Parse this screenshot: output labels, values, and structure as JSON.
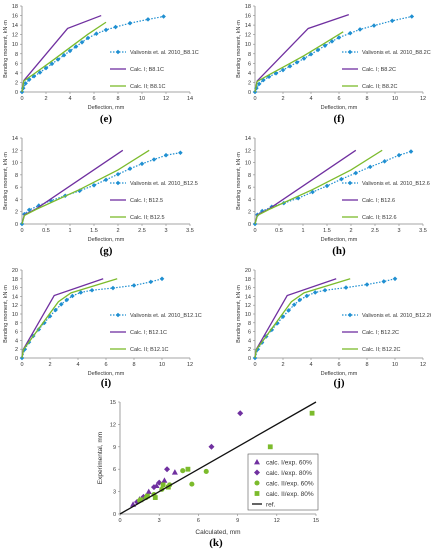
{
  "panel_labels": [
    "(e)",
    "(f)",
    "(g)",
    "(h)",
    "(i)",
    "(j)",
    "(k)"
  ],
  "colors": {
    "exp": "#1f8fd1",
    "calc1": "#7030a0",
    "calc2": "#7cbb2c",
    "ref": "#111111"
  },
  "chart_data": [
    {
      "id": "e",
      "type": "line",
      "xlabel": "Deflection, mm",
      "ylabel": "Bending moment, kN·m",
      "xlim": [
        0,
        14
      ],
      "ylim": [
        0,
        18
      ],
      "xticks": [
        0,
        2,
        4,
        6,
        8,
        10,
        12,
        14
      ],
      "yticks": [
        0,
        2,
        4,
        6,
        8,
        10,
        12,
        14,
        16,
        18
      ],
      "legend_position": "right",
      "series": [
        {
          "name": "Valivonis et. al. 2010_B8.1C",
          "style": "exp",
          "x": [
            0,
            0.1,
            0.3,
            0.6,
            1.0,
            1.5,
            2.0,
            2.5,
            3.0,
            3.5,
            4.0,
            4.5,
            5.0,
            5.5,
            6.2,
            7.0,
            7.8,
            9.0,
            10.5,
            11.8
          ],
          "y": [
            0,
            0.8,
            1.8,
            2.6,
            3.3,
            4.1,
            5.0,
            5.9,
            6.8,
            7.7,
            8.6,
            9.5,
            10.4,
            11.3,
            12.2,
            13.0,
            13.6,
            14.4,
            15.2,
            15.8
          ]
        },
        {
          "name": "Calc. I; B8.1C",
          "style": "calc1",
          "x": [
            0,
            0.15,
            3.8,
            6.6
          ],
          "y": [
            0,
            2.4,
            13.3,
            16.0
          ]
        },
        {
          "name": "Calc. II; B8.1C",
          "style": "calc2",
          "x": [
            0,
            0.15,
            1.0,
            2.5,
            4.0,
            5.5,
            7.0
          ],
          "y": [
            0,
            2.3,
            3.8,
            6.5,
            9.3,
            12.1,
            14.6
          ]
        }
      ]
    },
    {
      "id": "f",
      "type": "line",
      "xlabel": "Deflection, mm",
      "ylabel": "Bending moment, kN·m",
      "xlim": [
        0,
        12
      ],
      "ylim": [
        0,
        18
      ],
      "xticks": [
        0,
        2,
        4,
        6,
        8,
        10,
        12
      ],
      "yticks": [
        0,
        2,
        4,
        6,
        8,
        10,
        12,
        14,
        16,
        18
      ],
      "legend_position": "right",
      "series": [
        {
          "name": "Valivonis et. al. 2010_B8.2C",
          "style": "exp",
          "x": [
            0,
            0.1,
            0.3,
            0.6,
            1.0,
            1.5,
            2.0,
            2.5,
            3.0,
            3.5,
            4.0,
            4.5,
            5.0,
            5.5,
            6.0,
            6.8,
            7.5,
            8.5,
            9.8,
            11.2
          ],
          "y": [
            0,
            0.8,
            1.7,
            2.5,
            3.2,
            3.9,
            4.6,
            5.4,
            6.2,
            7.0,
            7.9,
            8.8,
            9.7,
            10.6,
            11.4,
            12.3,
            13.1,
            13.9,
            14.9,
            15.8
          ]
        },
        {
          "name": "Calc. I; B8.2C",
          "style": "calc1",
          "x": [
            0,
            0.15,
            3.8,
            6.7
          ],
          "y": [
            0,
            2.3,
            13.3,
            16.2
          ]
        },
        {
          "name": "Calc. II; B8.2C",
          "style": "calc2",
          "x": [
            0,
            0.15,
            1.0,
            2.2,
            3.5,
            4.8,
            6.3
          ],
          "y": [
            0,
            2.2,
            3.6,
            5.5,
            7.6,
            9.9,
            12.6
          ]
        }
      ]
    },
    {
      "id": "g",
      "type": "line",
      "xlabel": "Deflection, mm",
      "ylabel": "Bending moment, kN·m",
      "xlim": [
        0,
        3.5
      ],
      "ylim": [
        0,
        14
      ],
      "xticks": [
        0,
        0.5,
        1,
        1.5,
        2,
        2.5,
        3,
        3.5
      ],
      "yticks": [
        0,
        2,
        4,
        6,
        8,
        10,
        12,
        14
      ],
      "legend_position": "right",
      "series": [
        {
          "name": "Valivonis et. al. 2010_B12.5",
          "style": "exp",
          "x": [
            0,
            0.05,
            0.15,
            0.35,
            0.6,
            0.9,
            1.2,
            1.5,
            1.75,
            2.0,
            2.25,
            2.5,
            2.75,
            3.0,
            3.3
          ],
          "y": [
            0,
            1.6,
            2.3,
            3.0,
            3.8,
            4.6,
            5.4,
            6.3,
            7.2,
            8.1,
            9.0,
            9.8,
            10.5,
            11.2,
            11.6
          ]
        },
        {
          "name": "Calc. I; B12.5",
          "style": "calc1",
          "x": [
            0,
            0.05,
            0.3,
            2.1
          ],
          "y": [
            0,
            1.5,
            2.5,
            12.0
          ]
        },
        {
          "name": "Calc. II; B12.5",
          "style": "calc2",
          "x": [
            0,
            0.05,
            0.3,
            1.2,
            2.0,
            2.65
          ],
          "y": [
            0,
            1.4,
            2.4,
            5.6,
            8.8,
            12.0
          ]
        }
      ]
    },
    {
      "id": "h",
      "type": "line",
      "xlabel": "Deflection, mm",
      "ylabel": "Bending moment, kN·m",
      "xlim": [
        0,
        3.5
      ],
      "ylim": [
        0,
        14
      ],
      "xticks": [
        0,
        0.5,
        1,
        1.5,
        2,
        2.5,
        3,
        3.5
      ],
      "yticks": [
        0,
        2,
        4,
        6,
        8,
        10,
        12,
        14
      ],
      "legend_position": "right",
      "series": [
        {
          "name": "Valivonis et. al. 2010_B12.6",
          "style": "exp",
          "x": [
            0,
            0.05,
            0.15,
            0.35,
            0.6,
            0.9,
            1.2,
            1.5,
            1.8,
            2.1,
            2.4,
            2.7,
            3.0,
            3.25
          ],
          "y": [
            0,
            1.5,
            2.1,
            2.8,
            3.4,
            4.2,
            5.2,
            6.2,
            7.3,
            8.3,
            9.3,
            10.2,
            11.2,
            11.8
          ]
        },
        {
          "name": "Calc. I; B12.6",
          "style": "calc1",
          "x": [
            0,
            0.05,
            0.3,
            2.1
          ],
          "y": [
            0,
            1.5,
            2.5,
            12.0
          ]
        },
        {
          "name": "Calc. II; B12.6",
          "style": "calc2",
          "x": [
            0,
            0.05,
            0.3,
            1.2,
            2.0,
            2.65
          ],
          "y": [
            0,
            1.4,
            2.4,
            5.6,
            8.8,
            12.0
          ]
        }
      ]
    },
    {
      "id": "i",
      "type": "line",
      "xlabel": "Deflection, mm",
      "ylabel": "Bending moment, kN·m",
      "xlim": [
        0,
        12
      ],
      "ylim": [
        0,
        20
      ],
      "xticks": [
        0,
        2,
        4,
        6,
        8,
        10,
        12
      ],
      "yticks": [
        0,
        2,
        4,
        6,
        8,
        10,
        12,
        14,
        16,
        18,
        20
      ],
      "legend_position": "right",
      "series": [
        {
          "name": "Valivonis et. al. 2010_B12.1C",
          "style": "exp",
          "x": [
            0,
            0.2,
            0.5,
            0.8,
            1.2,
            1.6,
            2.0,
            2.4,
            2.8,
            3.2,
            3.6,
            4.2,
            5.0,
            6.5,
            8.0,
            9.2,
            10.0
          ],
          "y": [
            0,
            2.0,
            3.6,
            5.0,
            6.5,
            8.0,
            9.5,
            10.9,
            12.2,
            13.2,
            14.1,
            14.9,
            15.4,
            15.9,
            16.5,
            17.3,
            18.0
          ]
        },
        {
          "name": "Calc. I; B12.1C",
          "style": "calc1",
          "x": [
            0,
            0.1,
            2.3,
            5.8
          ],
          "y": [
            0,
            2.0,
            14.2,
            18.0
          ]
        },
        {
          "name": "Calc. II; B12.1C",
          "style": "calc2",
          "x": [
            0,
            0.1,
            2.6,
            3.5,
            6.8
          ],
          "y": [
            0,
            1.9,
            12.8,
            14.8,
            18.0
          ]
        }
      ]
    },
    {
      "id": "j",
      "type": "line",
      "xlabel": "Deflection, mm",
      "ylabel": "Bending moment, kN·m",
      "xlim": [
        0,
        12
      ],
      "ylim": [
        0,
        20
      ],
      "xticks": [
        0,
        2,
        4,
        6,
        8,
        10,
        12
      ],
      "yticks": [
        0,
        2,
        4,
        6,
        8,
        10,
        12,
        14,
        16,
        18,
        20
      ],
      "legend_position": "right",
      "series": [
        {
          "name": "Valivonis et. al. 2010_B12.2C",
          "style": "exp",
          "x": [
            0,
            0.2,
            0.5,
            0.8,
            1.2,
            1.6,
            2.0,
            2.4,
            2.8,
            3.2,
            3.7,
            4.3,
            5.0,
            6.5,
            8.0,
            9.2,
            10.0
          ],
          "y": [
            0,
            2.0,
            3.5,
            4.9,
            6.4,
            7.9,
            9.4,
            10.8,
            12.1,
            13.2,
            14.1,
            14.9,
            15.4,
            16.0,
            16.7,
            17.4,
            18.0
          ]
        },
        {
          "name": "Calc. I; B12.2C",
          "style": "calc1",
          "x": [
            0,
            0.1,
            2.3,
            5.8
          ],
          "y": [
            0,
            2.0,
            14.2,
            18.0
          ]
        },
        {
          "name": "Calc. II; B12.2C",
          "style": "calc2",
          "x": [
            0,
            0.1,
            2.6,
            3.5,
            6.8
          ],
          "y": [
            0,
            1.9,
            12.8,
            14.8,
            18.0
          ]
        }
      ]
    },
    {
      "id": "k",
      "type": "scatter",
      "xlabel": "Calculated, mm",
      "ylabel": "Experimental, mm",
      "xlim": [
        0,
        15
      ],
      "ylim": [
        0,
        15
      ],
      "xticks": [
        0,
        3,
        6,
        9,
        12,
        15
      ],
      "yticks": [
        0,
        3,
        6,
        9,
        12,
        15
      ],
      "legend_position": "right",
      "series": [
        {
          "name": "calc. I/exp. 60%",
          "marker": "triangle",
          "color": "#7030a0",
          "x": [
            1.0,
            1.5,
            2.2,
            2.8,
            3.4,
            4.2
          ],
          "y": [
            1.3,
            2.0,
            3.0,
            3.8,
            4.5,
            5.6
          ]
        },
        {
          "name": "calc. I/exp. 80%",
          "marker": "diamond",
          "color": "#7030a0",
          "x": [
            1.3,
            1.8,
            2.6,
            3.0,
            3.6,
            7.0,
            9.2
          ],
          "y": [
            1.6,
            2.3,
            3.6,
            4.2,
            6.0,
            9.0,
            13.5
          ]
        },
        {
          "name": "calc. II/exp. 60%",
          "marker": "circle",
          "color": "#7cbb2c",
          "x": [
            1.5,
            2.0,
            2.6,
            3.2,
            3.8,
            4.8,
            5.5,
            6.6
          ],
          "y": [
            1.8,
            2.2,
            2.6,
            3.3,
            3.9,
            5.8,
            4.0,
            5.7
          ]
        },
        {
          "name": "calc. II/exp. 80%",
          "marker": "square",
          "color": "#7cbb2c",
          "x": [
            1.6,
            2.1,
            2.7,
            3.3,
            3.7,
            5.2,
            11.5,
            14.7
          ],
          "y": [
            1.9,
            2.4,
            2.2,
            3.9,
            3.6,
            6.0,
            9.0,
            13.5
          ]
        },
        {
          "name": "ref.",
          "marker": "line",
          "color": "#111111",
          "x": [
            0,
            15
          ],
          "y": [
            0,
            15
          ]
        }
      ]
    }
  ]
}
